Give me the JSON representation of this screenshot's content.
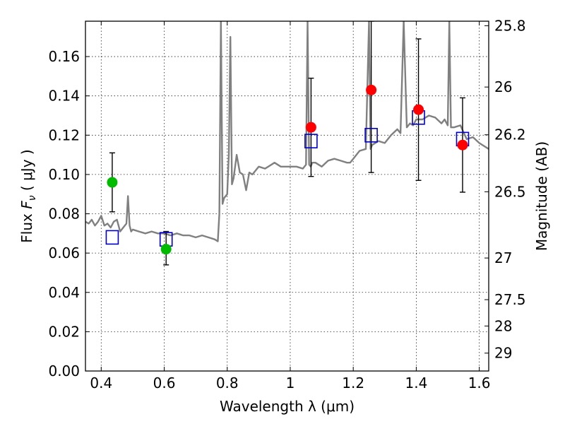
{
  "chart_data": {
    "type": "scatter",
    "title": "",
    "xlabel": "Wavelength  λ (μm)",
    "ylabel": "Flux  F_ν  ( μJy )",
    "right_ylabel": "Magnitude (AB)",
    "xlim": [
      0.35,
      1.63
    ],
    "ylim": [
      0.0,
      0.178
    ],
    "grid": true,
    "legend": "none",
    "x_ticks": [
      {
        "value": 0.4,
        "label": "0.4"
      },
      {
        "value": 0.6,
        "label": "0.6"
      },
      {
        "value": 0.8,
        "label": "0.8"
      },
      {
        "value": 1.0,
        "label": "1"
      },
      {
        "value": 1.2,
        "label": "1.2"
      },
      {
        "value": 1.4,
        "label": "1.4"
      },
      {
        "value": 1.6,
        "label": "1.6"
      }
    ],
    "y_ticks": [
      {
        "value": 0.0,
        "label": "0.00"
      },
      {
        "value": 0.02,
        "label": "0.02"
      },
      {
        "value": 0.04,
        "label": "0.04"
      },
      {
        "value": 0.06,
        "label": "0.06"
      },
      {
        "value": 0.08,
        "label": "0.08"
      },
      {
        "value": 0.1,
        "label": "0.10"
      },
      {
        "value": 0.12,
        "label": "0.12"
      },
      {
        "value": 0.14,
        "label": "0.14"
      },
      {
        "value": 0.16,
        "label": "0.16"
      }
    ],
    "right_ticks": [
      {
        "label": "25.8",
        "flux": 0.1757
      },
      {
        "label": "26",
        "flux": 0.1445
      },
      {
        "label": "26.2",
        "flux": 0.1202
      },
      {
        "label": "26.5",
        "flux": 0.0912
      },
      {
        "label": "27",
        "flux": 0.0575
      },
      {
        "label": "27.5",
        "flux": 0.0363
      },
      {
        "label": "28",
        "flux": 0.0229
      },
      {
        "label": "29",
        "flux": 0.0091
      }
    ],
    "colors": {
      "model": "#808080",
      "green_points": "#00bb00",
      "red_points": "#ff0000",
      "boxes": "#0000cc",
      "error_bars": "#000000"
    },
    "series": [
      {
        "style": "line",
        "x": [
          0.35,
          0.36,
          0.37,
          0.38,
          0.39,
          0.4,
          0.41,
          0.42,
          0.43,
          0.44,
          0.45,
          0.46,
          0.47,
          0.48,
          0.485,
          0.49,
          0.495,
          0.5,
          0.52,
          0.54,
          0.56,
          0.58,
          0.6,
          0.62,
          0.64,
          0.66,
          0.68,
          0.7,
          0.72,
          0.74,
          0.76,
          0.77,
          0.775,
          0.78,
          0.785,
          0.79,
          0.8,
          0.805,
          0.81,
          0.815,
          0.82,
          0.83,
          0.84,
          0.85,
          0.86,
          0.87,
          0.88,
          0.9,
          0.92,
          0.95,
          0.97,
          1.0,
          1.02,
          1.04,
          1.05,
          1.055,
          1.06,
          1.065,
          1.07,
          1.08,
          1.1,
          1.12,
          1.14,
          1.16,
          1.18,
          1.19,
          1.2,
          1.22,
          1.24,
          1.25,
          1.255,
          1.26,
          1.28,
          1.3,
          1.32,
          1.34,
          1.35,
          1.36,
          1.37,
          1.38,
          1.39,
          1.4,
          1.42,
          1.44,
          1.46,
          1.48,
          1.49,
          1.5,
          1.505,
          1.51,
          1.52,
          1.54,
          1.56,
          1.58,
          1.6,
          1.62,
          1.63
        ],
        "y": [
          0.076,
          0.075,
          0.077,
          0.074,
          0.076,
          0.079,
          0.074,
          0.075,
          0.073,
          0.076,
          0.077,
          0.071,
          0.073,
          0.075,
          0.089,
          0.074,
          0.071,
          0.072,
          0.071,
          0.07,
          0.071,
          0.07,
          0.07,
          0.069,
          0.07,
          0.069,
          0.069,
          0.068,
          0.069,
          0.068,
          0.067,
          0.066,
          0.08,
          0.178,
          0.085,
          0.088,
          0.09,
          0.11,
          0.17,
          0.095,
          0.098,
          0.11,
          0.101,
          0.1,
          0.092,
          0.101,
          0.1,
          0.104,
          0.103,
          0.106,
          0.104,
          0.104,
          0.104,
          0.103,
          0.105,
          0.178,
          0.105,
          0.104,
          0.106,
          0.106,
          0.104,
          0.107,
          0.108,
          0.107,
          0.106,
          0.106,
          0.108,
          0.112,
          0.113,
          0.178,
          0.113,
          0.115,
          0.117,
          0.116,
          0.12,
          0.123,
          0.121,
          0.178,
          0.124,
          0.126,
          0.125,
          0.128,
          0.128,
          0.13,
          0.129,
          0.126,
          0.128,
          0.125,
          0.178,
          0.124,
          0.124,
          0.125,
          0.118,
          0.119,
          0.116,
          0.114,
          0.113
        ]
      },
      {
        "style": "green-circles",
        "x": [
          0.435,
          0.606
        ],
        "y": [
          0.096,
          0.062
        ],
        "err_low": [
          0.081,
          0.054
        ],
        "err_high": [
          0.111,
          0.071
        ]
      },
      {
        "style": "red-circles",
        "x": [
          1.066,
          1.257,
          1.407,
          1.547
        ],
        "y": [
          0.124,
          0.143,
          0.133,
          0.115
        ],
        "err_low": [
          0.099,
          0.101,
          0.097,
          0.091
        ],
        "err_high": [
          0.149,
          0.178,
          0.169,
          0.139
        ]
      },
      {
        "style": "blue-squares",
        "x": [
          0.435,
          0.606,
          1.066,
          1.257,
          1.407,
          1.547
        ],
        "y": [
          0.068,
          0.067,
          0.117,
          0.12,
          0.129,
          0.118
        ]
      }
    ]
  }
}
